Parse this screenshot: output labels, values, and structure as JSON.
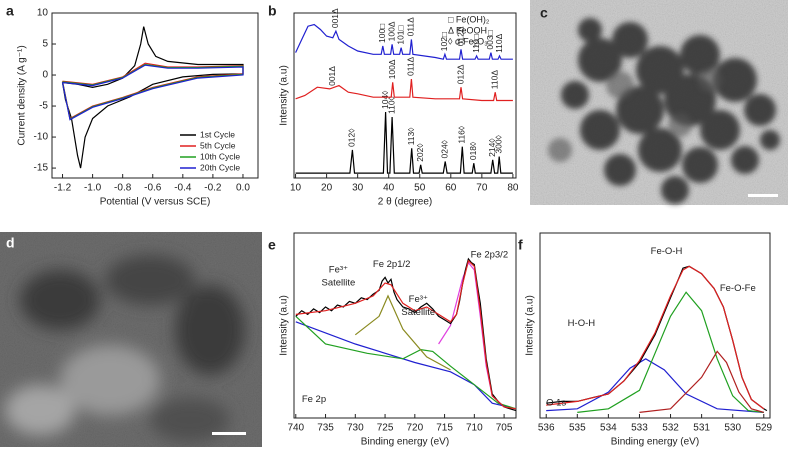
{
  "panels": [
    "a",
    "b",
    "c",
    "d",
    "e",
    "f"
  ],
  "chart_data": [
    {
      "type": "line",
      "xlabel": "Potential (V versus SCE)",
      "ylabel": "Current density (A g⁻¹)",
      "xlim": [
        -1.27,
        0.1
      ],
      "xticks": [
        -1.2,
        {
          "value": -1,
          "label": "-1.0"
        },
        -0.8,
        -0.6,
        -0.4,
        -0.2,
        {
          "value": 0,
          "label": "0.0"
        }
      ],
      "ylim": [
        -16.6,
        10
      ],
      "yticks": [
        10,
        5,
        0,
        -5,
        -10,
        -15
      ],
      "legend": "lower right",
      "series": [
        {
          "name": "1st Cycle",
          "color": "#000000",
          "x": [
            -1.2,
            -1.1,
            -1.0,
            -0.9,
            -0.8,
            -0.72,
            -0.68,
            -0.66,
            -0.63,
            -0.58,
            -0.5,
            -0.3,
            0,
            0,
            -0.2,
            -0.4,
            -0.6,
            -0.75,
            -0.9,
            -1.0,
            -1.05,
            -1.08,
            -1.1,
            -1.14,
            -1.18,
            -1.2
          ],
          "values": [
            -1.2,
            -1.5,
            -2.0,
            -1.5,
            -0.5,
            1.5,
            5,
            7.8,
            5,
            3,
            2.2,
            1.7,
            1.7,
            0.2,
            0.1,
            -0.3,
            -1.5,
            -3.5,
            -5,
            -7,
            -10,
            -15,
            -13,
            -7,
            -4,
            -1.2
          ]
        },
        {
          "name": "5th Cycle",
          "color": "#e02020",
          "x": [
            -1.2,
            -1.0,
            -0.8,
            -0.65,
            -0.5,
            -0.3,
            0,
            0,
            -0.3,
            -0.6,
            -0.8,
            -1.0,
            -1.15,
            -1.2
          ],
          "values": [
            -1,
            -1.5,
            -0.3,
            1.9,
            1.3,
            1.3,
            1.5,
            0.2,
            -0.3,
            -2,
            -3.6,
            -5,
            -7,
            -1
          ]
        },
        {
          "name": "10th Cycle",
          "color": "#20a020",
          "x": [
            -1.2,
            -1.0,
            -0.8,
            -0.65,
            -0.5,
            -0.3,
            0,
            0,
            -0.3,
            -0.6,
            -0.8,
            -1.0,
            -1.15,
            -1.2
          ],
          "values": [
            -1.1,
            -1.6,
            -0.4,
            1.7,
            1.2,
            1.2,
            1.4,
            0.1,
            -0.4,
            -2.1,
            -3.7,
            -5.1,
            -7.1,
            -1.1
          ]
        },
        {
          "name": "20th Cycle",
          "color": "#2020d0",
          "x": [
            -1.2,
            -1.0,
            -0.8,
            -0.65,
            -0.5,
            -0.3,
            0,
            0,
            -0.3,
            -0.6,
            -0.8,
            -1.0,
            -1.15,
            -1.2
          ],
          "values": [
            -1.2,
            -1.7,
            -0.5,
            1.6,
            1.1,
            1.1,
            1.3,
            0,
            -0.5,
            -2.2,
            -3.8,
            -5.2,
            -7.2,
            -1.2
          ]
        }
      ]
    },
    {
      "type": "line",
      "xlabel": "2 θ (degree)",
      "ylabel": "Intensity (a.u)",
      "xlim": [
        9.5,
        81
      ],
      "xticks": [
        10,
        20,
        30,
        40,
        50,
        60,
        70,
        80
      ],
      "ylim": [
        0,
        100
      ],
      "phase_legend": [
        "□ Fe(OH)₂",
        "Δ FeOOH",
        "◊ α-Fe₂O₃"
      ],
      "series": [
        {
          "color": "#000000",
          "x": [
            10,
            27.5,
            28.3,
            29,
            38.3,
            39,
            39.6,
            40.4,
            41.1,
            41.8,
            46.8,
            47.4,
            48,
            49.8,
            50.3,
            50.8,
            57.6,
            58.2,
            58.8,
            63.1,
            63.7,
            64.3,
            66.9,
            67.4,
            67.9,
            72.9,
            73.5,
            74.1,
            75.1,
            75.6,
            76.1,
            80
          ],
          "values": [
            3,
            3,
            17,
            3,
            3,
            40,
            3,
            3,
            37,
            3,
            3,
            18,
            3,
            3,
            8,
            3,
            3,
            10,
            3,
            3,
            19,
            3,
            3,
            9,
            3,
            3,
            11,
            3,
            3,
            13,
            3,
            3
          ],
          "peak_labels": [
            {
              "x": 28.3,
              "text": "012◊"
            },
            {
              "x": 39,
              "text": "104◊"
            },
            {
              "x": 41.1,
              "text": "110◊"
            },
            {
              "x": 47.4,
              "text": "113◊"
            },
            {
              "x": 50.3,
              "text": "202◊"
            },
            {
              "x": 58.2,
              "text": "024◊"
            },
            {
              "x": 63.7,
              "text": "116◊"
            },
            {
              "x": 67.4,
              "text": "018◊"
            },
            {
              "x": 73.5,
              "text": "214◊"
            },
            {
              "x": 75.6,
              "text": "300◊"
            }
          ]
        },
        {
          "color": "#e02020",
          "x": [
            10,
            13,
            17,
            21,
            24,
            27,
            30,
            35,
            40,
            40.8,
            41.3,
            41.8,
            46.8,
            47.3,
            47.8,
            55,
            62.8,
            63.3,
            63.8,
            70,
            73.8,
            74.3,
            74.8,
            80
          ],
          "values": [
            48,
            50,
            55,
            54,
            56,
            52,
            51,
            49,
            49,
            49,
            58,
            49,
            49,
            60,
            49,
            48,
            48,
            55,
            48,
            47,
            47,
            52,
            47,
            47
          ],
          "peak_labels": [
            {
              "x": 22,
              "text": "001Δ"
            },
            {
              "x": 41.3,
              "text": "100Δ"
            },
            {
              "x": 47.3,
              "text": "011Δ"
            },
            {
              "x": 63.3,
              "text": "012Δ"
            },
            {
              "x": 74.3,
              "text": "110Δ"
            }
          ]
        },
        {
          "color": "#2020d0",
          "x": [
            10,
            12,
            14,
            16,
            18,
            20,
            22,
            23,
            24,
            27,
            30,
            35,
            37.6,
            38.1,
            38.6,
            40.6,
            41.1,
            41.6,
            43.5,
            44,
            44.5,
            46.8,
            47.3,
            47.8,
            55,
            57.6,
            58.1,
            58.6,
            62.8,
            63.3,
            63.8,
            67.8,
            68.3,
            68.8,
            72.4,
            72.9,
            73.4,
            75.2,
            75.7,
            76.2,
            80
          ],
          "values": [
            76,
            84,
            92,
            93,
            90,
            86,
            85,
            89,
            84,
            80,
            77,
            75,
            75,
            80,
            75,
            75,
            81,
            75,
            75,
            79,
            75,
            75,
            84,
            75,
            73,
            72,
            75,
            72,
            72,
            78,
            72,
            72,
            74,
            72,
            72,
            76,
            72,
            72,
            74,
            72,
            72
          ],
          "peak_labels": [
            {
              "x": 23,
              "text": "001Δ"
            },
            {
              "x": 38.1,
              "text": "100□"
            },
            {
              "x": 41.1,
              "text": "100Δ"
            },
            {
              "x": 44,
              "text": "101□"
            },
            {
              "x": 47.3,
              "text": "011Δ"
            },
            {
              "x": 58.1,
              "text": "102□"
            },
            {
              "x": 63.3,
              "text": "012Δ"
            },
            {
              "x": 68.3,
              "text": "110□"
            },
            {
              "x": 72.9,
              "text": "003□"
            },
            {
              "x": 75.7,
              "text": "110Δ"
            }
          ]
        }
      ]
    },
    {
      "type": "line",
      "xlabel": "Binding energy (eV)",
      "ylabel": "Intensity (a.u)",
      "xlim": [
        740.3,
        703
      ],
      "xticks": [
        740,
        735,
        730,
        725,
        720,
        715,
        710,
        705
      ],
      "ylim": [
        0,
        100
      ],
      "annotations": [
        {
          "text": "Fe³⁺"
        },
        {
          "text": "Satellite"
        },
        {
          "text": "Fe 2p1/2"
        },
        {
          "text": "Fe³⁺"
        },
        {
          "text": "Satellite"
        },
        {
          "text": "Fe 2p3/2"
        },
        {
          "text": "Fe 2p"
        }
      ],
      "series": [
        {
          "color": "#2020d0",
          "x": [
            740,
            730,
            720,
            714,
            710,
            707,
            703
          ],
          "values": [
            52,
            40,
            30,
            25,
            18,
            8,
            5
          ]
        },
        {
          "color": "#20a020",
          "x": [
            740,
            735,
            728,
            722,
            719,
            717,
            714,
            710,
            706,
            703
          ],
          "values": [
            55,
            40,
            35,
            32,
            37,
            36,
            28,
            18,
            8,
            5
          ]
        },
        {
          "color": "#8a8a20",
          "x": [
            730,
            726,
            724.5,
            722,
            718,
            714
          ],
          "values": [
            45,
            55,
            66,
            48,
            33,
            26
          ]
        },
        {
          "color": "#e040e0",
          "x": [
            716,
            714,
            712,
            711,
            710,
            709,
            708,
            707,
            705
          ],
          "values": [
            40,
            50,
            75,
            84,
            80,
            55,
            28,
            12,
            6
          ]
        },
        {
          "color": "#000000",
          "x": [
            740,
            739,
            738,
            737,
            736,
            735,
            734,
            733,
            732,
            731,
            730,
            729,
            728,
            727,
            726,
            725.5,
            725,
            724.5,
            724,
            723.5,
            723,
            722,
            721,
            720,
            719,
            718,
            717,
            716,
            715,
            714,
            713,
            712.5,
            712,
            711.5,
            711,
            710.5,
            710,
            709.5,
            709,
            708,
            707,
            706,
            705,
            704,
            703
          ],
          "values": [
            55,
            58,
            56,
            59,
            57,
            60,
            58,
            61,
            60,
            63,
            62,
            65,
            64,
            67,
            69,
            74,
            76,
            73,
            75,
            68,
            64,
            60,
            59,
            57,
            60,
            62,
            59,
            55,
            53,
            51,
            56,
            63,
            72,
            80,
            86,
            84,
            83,
            72,
            62,
            32,
            13,
            9,
            6,
            5,
            4
          ]
        },
        {
          "color": "#e02020",
          "x": [
            740,
            735,
            730,
            727,
            725,
            724,
            722,
            720,
            718,
            716,
            714,
            713,
            712,
            711,
            710,
            709,
            708,
            707,
            705,
            703
          ],
          "values": [
            56,
            58,
            62,
            66,
            73,
            72,
            62,
            58,
            60,
            56,
            52,
            56,
            72,
            85,
            82,
            58,
            30,
            12,
            6,
            5
          ]
        }
      ]
    },
    {
      "type": "line",
      "xlabel": "Binding energy (eV)",
      "ylabel": "Intensity (a.u)",
      "xlim": [
        536.2,
        528.8
      ],
      "xticks": [
        536,
        535,
        534,
        533,
        532,
        531,
        530,
        529
      ],
      "ylim": [
        0,
        100
      ],
      "annotations": [
        {
          "text": "Fe-O-H",
          "color": "#2e9e2e"
        },
        {
          "text": "Fe-O-Fe",
          "color": "#b02020"
        },
        {
          "text": "H-O-H",
          "color": "#2020a0"
        },
        {
          "text": "O 1s",
          "color": "#000000"
        }
      ],
      "series": [
        {
          "color": "#2020d0",
          "x": [
            536,
            535,
            534,
            533.3,
            532.8,
            532.2,
            531.5,
            530.5,
            529
          ],
          "values": [
            4,
            5,
            14,
            27,
            32,
            26,
            13,
            5,
            3
          ]
        },
        {
          "color": "#20a020",
          "x": [
            535,
            534,
            533,
            532.5,
            532,
            531.5,
            531,
            530.5,
            530,
            529.5,
            529
          ],
          "values": [
            3,
            5,
            15,
            35,
            55,
            68,
            58,
            32,
            12,
            4,
            3
          ]
        },
        {
          "color": "#b02020",
          "x": [
            533,
            532,
            531,
            530.5,
            530.2,
            529.8,
            529.4,
            529
          ],
          "values": [
            3,
            5,
            22,
            36,
            30,
            14,
            5,
            3
          ]
        },
        {
          "color": "#000000",
          "x": [
            536,
            535.5,
            535,
            534.5,
            534,
            533.5,
            533,
            532.5,
            532,
            531.8,
            531.6,
            531.4,
            531.2,
            531,
            530.8,
            530.6,
            530.3,
            530,
            529.7,
            529.4,
            529,
            528.9
          ],
          "values": [
            8,
            9,
            9,
            11,
            13,
            20,
            30,
            45,
            65,
            73,
            81,
            82,
            80,
            78,
            74,
            70,
            60,
            42,
            22,
            10,
            5,
            4
          ]
        },
        {
          "color": "#e02020",
          "x": [
            536,
            535,
            534,
            533.5,
            533,
            532.5,
            532,
            531.6,
            531.4,
            531,
            530.6,
            530.3,
            530,
            529.7,
            529.4,
            529
          ],
          "values": [
            7,
            9,
            13,
            20,
            31,
            46,
            66,
            80,
            82,
            78,
            70,
            60,
            42,
            22,
            10,
            5
          ]
        }
      ]
    }
  ],
  "scale_bars": [
    "",
    ""
  ]
}
